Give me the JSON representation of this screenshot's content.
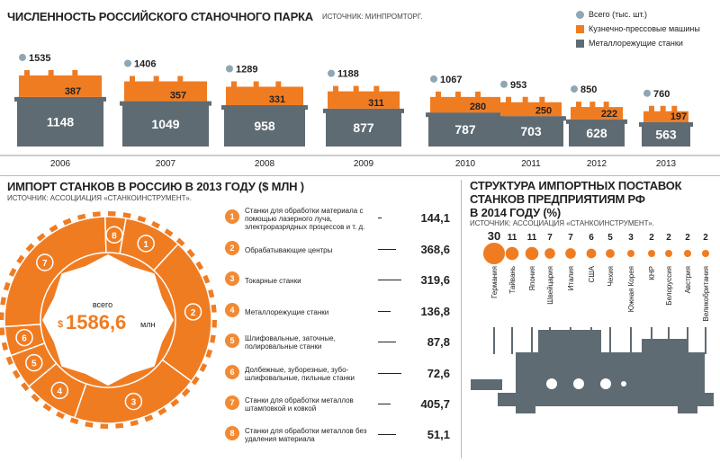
{
  "top": {
    "title": "ЧИСЛЕННОСТЬ РОССИЙСКОГО СТАНОЧНОГО ПАРКА",
    "source": "ИСТОЧНИК: МИНПРОМТОРГ.",
    "legend": [
      {
        "label": "Всего (тыс. шт.)",
        "color": "#8fa7b3",
        "shape": "circle"
      },
      {
        "label": "Кузнечно-прессовые машины",
        "color": "#f07c22",
        "shape": "square"
      },
      {
        "label": "Металлорежущие станки",
        "color": "#5f6b72",
        "shape": "square"
      }
    ]
  },
  "chart_data": [
    {
      "type": "bar",
      "title": "ЧИСЛЕННОСТЬ РОССИЙСКОГО СТАНОЧНОГО ПАРКА",
      "categories": [
        "2006",
        "2007",
        "2008",
        "2009",
        "2010",
        "2011",
        "2012",
        "2013"
      ],
      "series": [
        {
          "name": "Всего (тыс. шт.)",
          "values": [
            1535,
            1406,
            1289,
            1188,
            1067,
            953,
            850,
            760
          ]
        },
        {
          "name": "Кузнечно-прессовые машины",
          "values": [
            387,
            357,
            331,
            311,
            280,
            250,
            222,
            197
          ]
        },
        {
          "name": "Металлорежущие станки",
          "values": [
            1148,
            1049,
            958,
            877,
            787,
            703,
            628,
            563
          ]
        }
      ]
    },
    {
      "type": "pie",
      "title": "ИМПОРТ СТАНКОВ В РОССИЮ В 2013 ГОДУ ($ МЛН )",
      "categories": [
        "1",
        "2",
        "3",
        "4",
        "5",
        "6",
        "7",
        "8"
      ],
      "values": [
        144.1,
        368.6,
        319.6,
        136.8,
        87.8,
        72.6,
        405.7,
        51.1
      ]
    },
    {
      "type": "bar",
      "title": "СТРУКТУРА ИМПОРТНЫХ ПОСТАВОК СТАНКОВ ПРЕДПРИЯТИЯМ РФ В 2014 ГОДУ (%)",
      "categories": [
        "Германия",
        "Тайвань",
        "Япония",
        "Швейцария",
        "Италия",
        "США",
        "Чехия",
        "Южная Корея",
        "КНР",
        "Белоруссия",
        "Австрия",
        "Великобритания"
      ],
      "values": [
        30,
        11,
        11,
        7,
        7,
        6,
        5,
        3,
        2,
        2,
        2,
        2
      ]
    }
  ],
  "imports": {
    "title": "ИМПОРТ СТАНКОВ В РОССИЮ В 2013 ГОДУ ($ МЛН )",
    "source": "ИСТОЧНИК: АССОЦИАЦИЯ «СТАНКОИНСТРУМЕНТ».",
    "total_label": "всего",
    "total_value": "1586,6",
    "total_currency": "$",
    "total_unit": "млн",
    "items": [
      {
        "n": "1",
        "label": "Станки для обработки материала с помощью лазерного луча, электроразрядных процессов и т. д.",
        "value": "144,1"
      },
      {
        "n": "2",
        "label": "Обрабатывающие центры",
        "value": "368,6"
      },
      {
        "n": "3",
        "label": "Токарные станки",
        "value": "319,6"
      },
      {
        "n": "4",
        "label": "Металлорежущие станки",
        "value": "136,8"
      },
      {
        "n": "5",
        "label": "Шлифовальные, заточные, полировальные станки",
        "value": "87,8"
      },
      {
        "n": "6",
        "label": "Долбежные, зуборезные, зубо-шлифовальные, пильные станки",
        "value": "72,6"
      },
      {
        "n": "7",
        "label": "Станки для обработки металлов штамповкой и ковкой",
        "value": "405,7"
      },
      {
        "n": "8",
        "label": "Станки для обработки металлов без удаления материала",
        "value": "51,1"
      }
    ]
  },
  "structure": {
    "title_line1": "СТРУКТУРА ИМПОРТНЫХ ПОСТАВОК",
    "title_line2": "СТАНКОВ ПРЕДПРИЯТИЯМ РФ",
    "title_line3": "В 2014 ГОДУ (%)",
    "source": "ИСТОЧНИК: АССОЦИАЦИЯ «СТАНКОИНСТРУМЕНТ».",
    "colors": {
      "orange": "#f07c22",
      "gray": "#5f6b72",
      "light": "#8fa7b3"
    }
  }
}
